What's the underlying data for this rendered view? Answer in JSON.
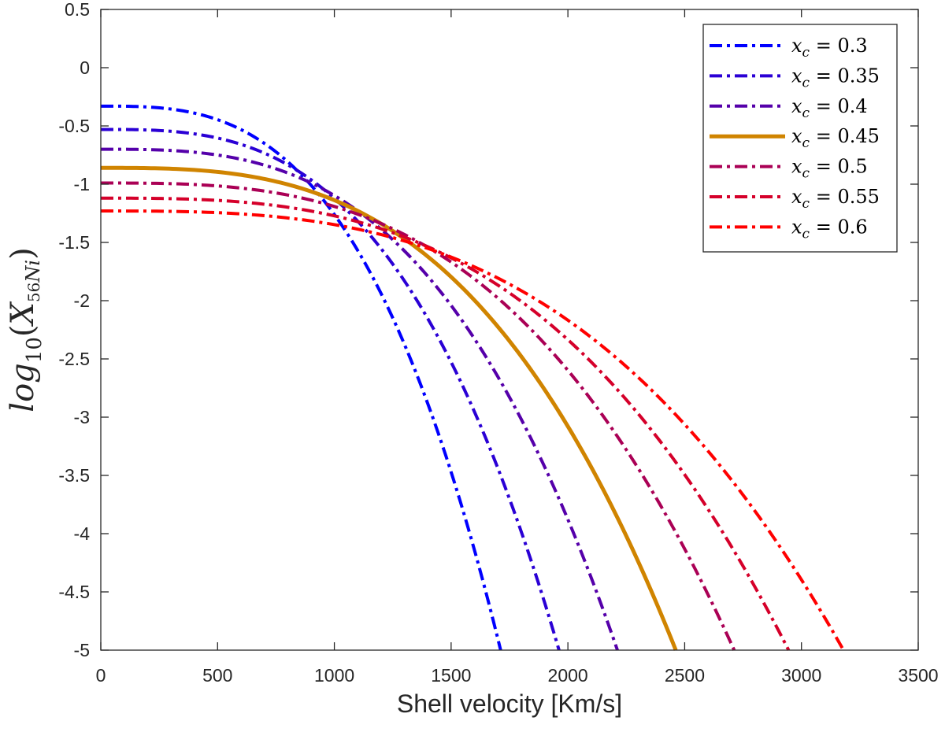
{
  "chart_data": {
    "type": "line",
    "title": "",
    "xlabel": "Shell velocity [Km/s]",
    "ylabel": {
      "base": "log",
      "base_sub": "10",
      "open": "(",
      "var": "X",
      "sup": "56",
      "sub": "Ni",
      "close": ")"
    },
    "xlim": [
      0,
      3500
    ],
    "ylim": [
      -5,
      0.5
    ],
    "xticks": [
      0,
      500,
      1000,
      1500,
      2000,
      2500,
      3000,
      3500
    ],
    "xtick_labels": [
      "0",
      "500",
      "1000",
      "1500",
      "2000",
      "2500",
      "3000",
      "3500"
    ],
    "yticks": [
      0.5,
      0,
      -0.5,
      -1,
      -1.5,
      -2,
      -2.5,
      -3,
      -3.5,
      -4,
      -4.5,
      -5
    ],
    "ytick_labels": [
      "0.5",
      "0",
      "-0.5",
      "-1",
      "-1.5",
      "-2",
      "-2.5",
      "-3",
      "-3.5",
      "-4",
      "-4.5",
      "-5"
    ],
    "grid": false,
    "legend_position": "top-right",
    "legend_prefix": "x",
    "legend_sub": "c",
    "legend_eq": " = ",
    "series": [
      {
        "name": "0.3",
        "label": "x_c = 0.3",
        "color": "#0000ff",
        "style": "dashdot",
        "y0": -0.33,
        "x_end": 1712
      },
      {
        "name": "0.35",
        "label": "x_c = 0.35",
        "color": "#2a00d5",
        "style": "dashdot",
        "y0": -0.53,
        "x_end": 1962
      },
      {
        "name": "0.4",
        "label": "x_c = 0.4",
        "color": "#5500aa",
        "style": "dashdot",
        "y0": -0.7,
        "x_end": 2212
      },
      {
        "name": "0.45",
        "label": "x_c = 0.45",
        "color": "#d08400",
        "style": "solid",
        "y0": -0.86,
        "x_end": 2462
      },
      {
        "name": "0.5",
        "label": "x_c = 0.5",
        "color": "#aa0055",
        "style": "dashdot",
        "y0": -0.99,
        "x_end": 2712
      },
      {
        "name": "0.55",
        "label": "x_c = 0.55",
        "color": "#d5002a",
        "style": "dashdot",
        "y0": -1.12,
        "x_end": 2945
      },
      {
        "name": "0.6",
        "label": "x_c = 0.6",
        "color": "#ff0000",
        "style": "dashdot",
        "y0": -1.23,
        "x_end": 3180
      }
    ]
  }
}
